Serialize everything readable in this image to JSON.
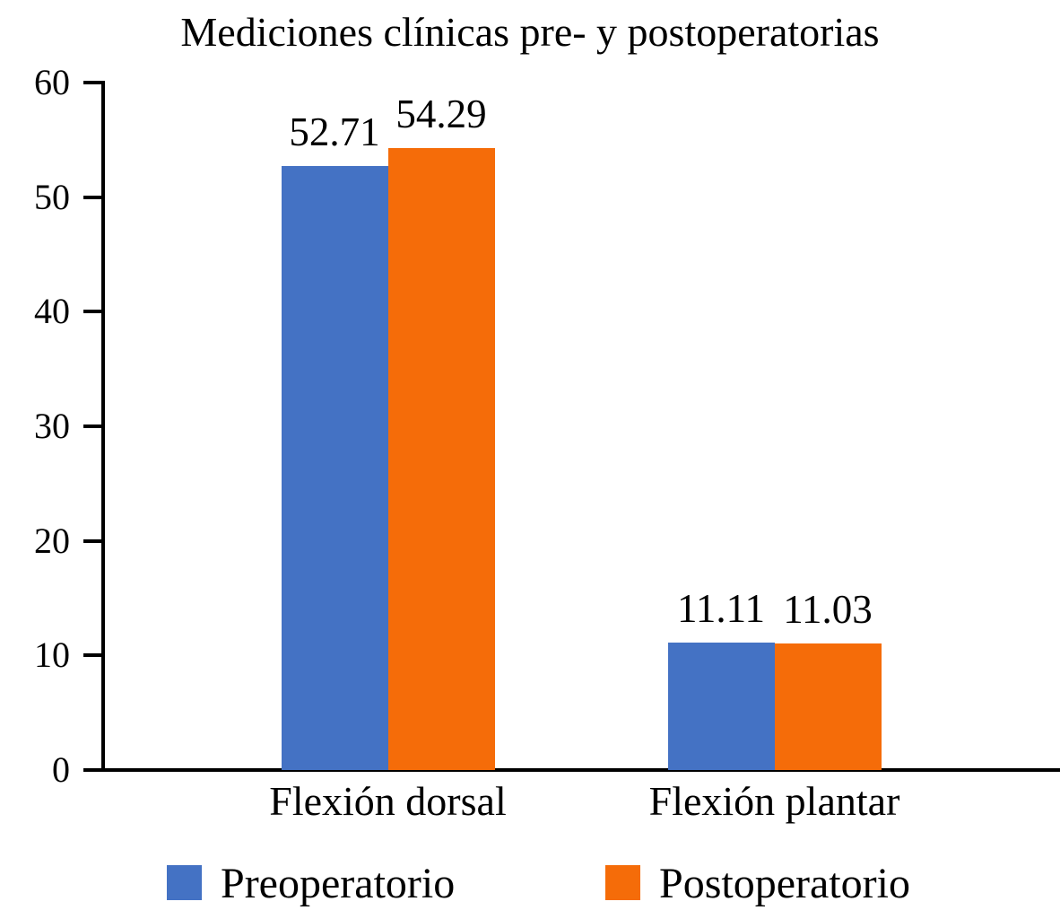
{
  "figure": {
    "background_color": "#ffffff",
    "text_color": "#000000",
    "axis_color": "#000000"
  },
  "chart_data": {
    "type": "bar",
    "title": "Mediciones clínicas pre- y postoperatorias",
    "categories": [
      "Flexión dorsal",
      "Flexión plantar"
    ],
    "series": [
      {
        "name": "Preoperatorio",
        "color": "#4472C4",
        "values": [
          52.71,
          11.11
        ],
        "labels": [
          "52.71",
          "11.11"
        ]
      },
      {
        "name": "Postoperatorio",
        "color": "#F56C09",
        "values": [
          54.29,
          11.03
        ],
        "labels": [
          "54.29",
          "11.03"
        ]
      }
    ],
    "ylabel": "",
    "xlabel": "",
    "ylim": [
      0,
      60
    ],
    "yticks": [
      "0",
      "10",
      "20",
      "30",
      "40",
      "50",
      "60"
    ],
    "grid": false,
    "data_labels": true,
    "legend_position": "bottom"
  }
}
